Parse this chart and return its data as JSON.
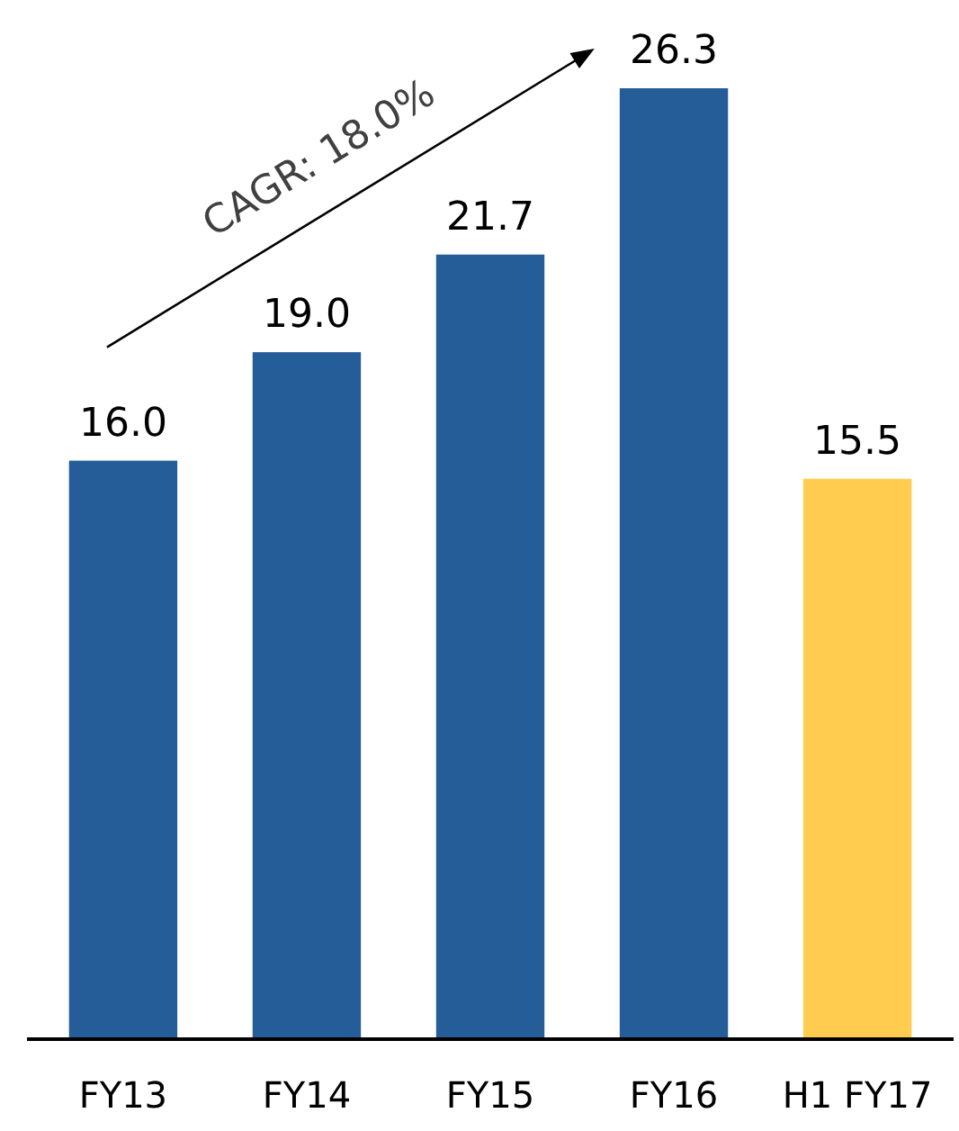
{
  "chart_data": {
    "type": "bar",
    "categories": [
      "FY13",
      "FY14",
      "FY15",
      "FY16",
      "H1 FY17"
    ],
    "values": [
      16.0,
      19.0,
      21.7,
      26.3,
      15.5
    ],
    "value_labels": [
      "16.0",
      "19.0",
      "21.7",
      "26.3",
      "15.5"
    ],
    "colors": [
      "#245d98",
      "#245d98",
      "#245d98",
      "#245d98",
      "#ffcc4f"
    ],
    "tick_labels": "x",
    "annotations": [
      "CAGR: 18.0%"
    ]
  }
}
